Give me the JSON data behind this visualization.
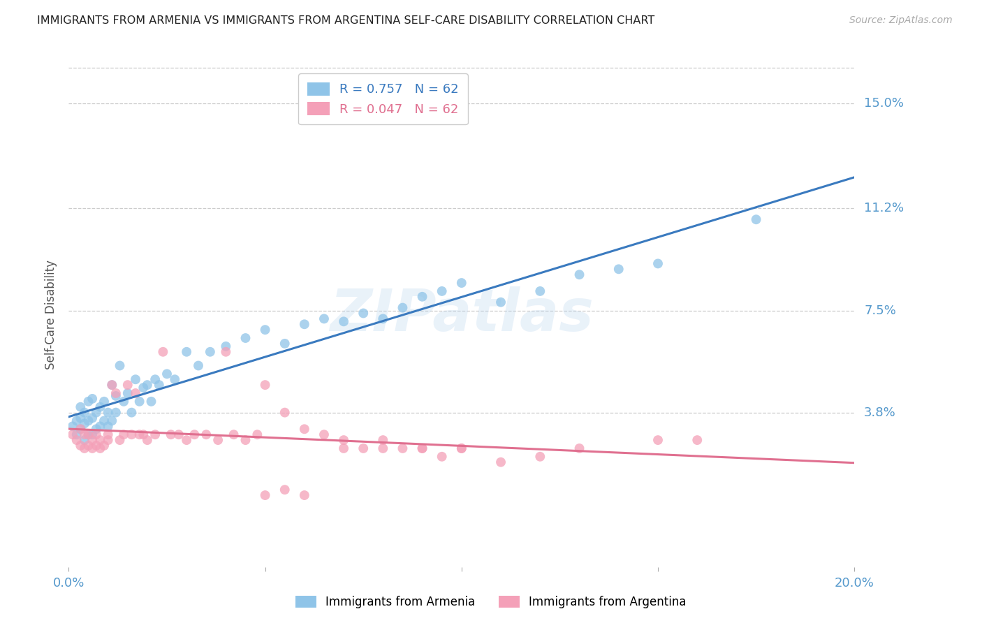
{
  "title": "IMMIGRANTS FROM ARMENIA VS IMMIGRANTS FROM ARGENTINA SELF-CARE DISABILITY CORRELATION CHART",
  "source": "Source: ZipAtlas.com",
  "xlabel_ticks": [
    "0.0%",
    "",
    "",
    "",
    "20.0%"
  ],
  "xlabel_tick_vals": [
    0.0,
    0.05,
    0.1,
    0.15,
    0.2
  ],
  "ylabel": "Self-Care Disability",
  "ylabel_ticks": [
    "15.0%",
    "11.2%",
    "7.5%",
    "3.8%"
  ],
  "ylabel_tick_vals": [
    0.15,
    0.112,
    0.075,
    0.038
  ],
  "xlim": [
    0.0,
    0.2
  ],
  "ylim": [
    -0.018,
    0.165
  ],
  "armenia_R": 0.757,
  "argentina_R": 0.047,
  "N": 62,
  "armenia_color": "#8fc4e8",
  "argentina_color": "#f4a0b8",
  "armenia_line_color": "#3a7abf",
  "argentina_line_color": "#e07090",
  "background_color": "#ffffff",
  "grid_color": "#cccccc",
  "title_color": "#222222",
  "axis_label_color": "#5599cc",
  "watermark": "ZIPatlas",
  "armenia_scatter_x": [
    0.001,
    0.002,
    0.002,
    0.003,
    0.003,
    0.003,
    0.004,
    0.004,
    0.004,
    0.005,
    0.005,
    0.005,
    0.006,
    0.006,
    0.006,
    0.007,
    0.007,
    0.008,
    0.008,
    0.009,
    0.009,
    0.01,
    0.01,
    0.011,
    0.011,
    0.012,
    0.012,
    0.013,
    0.014,
    0.015,
    0.016,
    0.017,
    0.018,
    0.019,
    0.02,
    0.021,
    0.022,
    0.023,
    0.025,
    0.027,
    0.03,
    0.033,
    0.036,
    0.04,
    0.045,
    0.05,
    0.055,
    0.06,
    0.065,
    0.07,
    0.075,
    0.08,
    0.085,
    0.09,
    0.095,
    0.1,
    0.11,
    0.12,
    0.13,
    0.14,
    0.15,
    0.175
  ],
  "armenia_scatter_y": [
    0.033,
    0.03,
    0.035,
    0.032,
    0.036,
    0.04,
    0.028,
    0.034,
    0.038,
    0.03,
    0.035,
    0.042,
    0.03,
    0.036,
    0.043,
    0.032,
    0.038,
    0.033,
    0.04,
    0.035,
    0.042,
    0.033,
    0.038,
    0.048,
    0.035,
    0.038,
    0.044,
    0.055,
    0.042,
    0.045,
    0.038,
    0.05,
    0.042,
    0.047,
    0.048,
    0.042,
    0.05,
    0.048,
    0.052,
    0.05,
    0.06,
    0.055,
    0.06,
    0.062,
    0.065,
    0.068,
    0.063,
    0.07,
    0.072,
    0.071,
    0.074,
    0.072,
    0.076,
    0.08,
    0.082,
    0.085,
    0.078,
    0.082,
    0.088,
    0.09,
    0.092,
    0.108
  ],
  "argentina_scatter_x": [
    0.001,
    0.002,
    0.003,
    0.003,
    0.004,
    0.004,
    0.005,
    0.005,
    0.006,
    0.006,
    0.007,
    0.007,
    0.008,
    0.008,
    0.009,
    0.01,
    0.01,
    0.011,
    0.012,
    0.013,
    0.014,
    0.015,
    0.016,
    0.017,
    0.018,
    0.019,
    0.02,
    0.022,
    0.024,
    0.026,
    0.028,
    0.03,
    0.032,
    0.035,
    0.038,
    0.04,
    0.042,
    0.045,
    0.048,
    0.05,
    0.055,
    0.06,
    0.065,
    0.07,
    0.075,
    0.08,
    0.085,
    0.09,
    0.095,
    0.1,
    0.11,
    0.12,
    0.13,
    0.05,
    0.055,
    0.06,
    0.07,
    0.08,
    0.09,
    0.1,
    0.15,
    0.16
  ],
  "argentina_scatter_y": [
    0.03,
    0.028,
    0.026,
    0.032,
    0.025,
    0.03,
    0.026,
    0.03,
    0.025,
    0.028,
    0.026,
    0.03,
    0.025,
    0.028,
    0.026,
    0.028,
    0.03,
    0.048,
    0.045,
    0.028,
    0.03,
    0.048,
    0.03,
    0.045,
    0.03,
    0.03,
    0.028,
    0.03,
    0.06,
    0.03,
    0.03,
    0.028,
    0.03,
    0.03,
    0.028,
    0.06,
    0.03,
    0.028,
    0.03,
    0.048,
    0.038,
    0.032,
    0.03,
    0.028,
    0.025,
    0.028,
    0.025,
    0.025,
    0.022,
    0.025,
    0.02,
    0.022,
    0.025,
    0.008,
    0.01,
    0.008,
    0.025,
    0.025,
    0.025,
    0.025,
    0.028,
    0.028
  ]
}
